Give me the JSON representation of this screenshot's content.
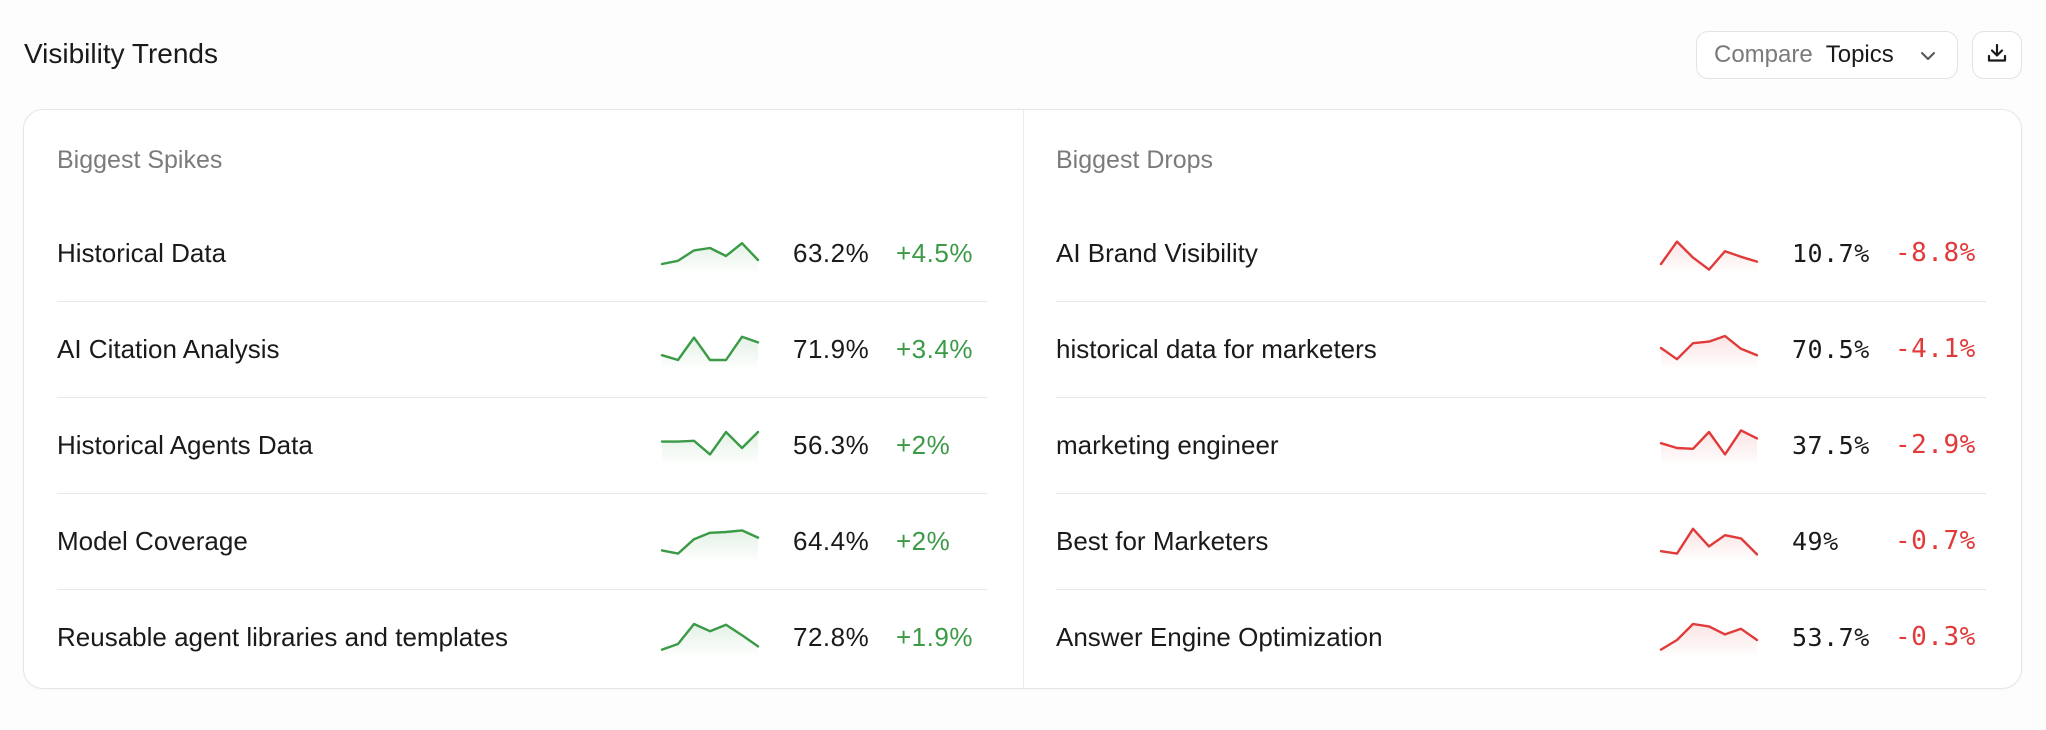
{
  "header": {
    "title": "Visibility Trends",
    "compare_label": "Compare",
    "compare_value": "Topics",
    "compare_icon": "chevron-down-icon",
    "download_icon": "download-icon"
  },
  "colors": {
    "positive": "#3a9a46",
    "negative": "#e03a3a"
  },
  "spikes": {
    "title": "Biggest Spikes",
    "rows": [
      {
        "name": "Historical Data",
        "value": "63.2%",
        "change": "+4.5%",
        "trend": [
          10,
          14,
          27,
          30,
          20,
          36,
          15
        ]
      },
      {
        "name": "AI Citation Analysis",
        "value": "71.9%",
        "change": "+3.4%",
        "trend": [
          16,
          10,
          38,
          10,
          10,
          39,
          32
        ]
      },
      {
        "name": "Historical Agents Data",
        "value": "56.3%",
        "change": "+2%",
        "trend": [
          28,
          28,
          29,
          12,
          40,
          20,
          40
        ]
      },
      {
        "name": "Model Coverage",
        "value": "64.4%",
        "change": "+2%",
        "trend": [
          12,
          8,
          26,
          34,
          35,
          37,
          28
        ]
      },
      {
        "name": "Reusable agent libraries and templates",
        "value": "72.8%",
        "change": "+1.9%",
        "trend": [
          8,
          15,
          40,
          31,
          39,
          26,
          12
        ]
      }
    ]
  },
  "drops": {
    "title": "Biggest Drops",
    "rows": [
      {
        "name": "AI Brand Visibility",
        "value": "10.7%",
        "change": "-8.8%",
        "trend": [
          10,
          38,
          18,
          3,
          26,
          19,
          13
        ]
      },
      {
        "name": "historical data for marketers",
        "value": "70.5%",
        "change": "-4.1%",
        "trend": [
          25,
          11,
          31,
          33,
          40,
          24,
          16
        ]
      },
      {
        "name": "marketing engineer",
        "value": "37.5%",
        "change": "-2.9%",
        "trend": [
          26,
          20,
          19,
          40,
          12,
          42,
          32
        ]
      },
      {
        "name": "Best for Marketers",
        "value": "49%",
        "change": "-0.7%",
        "trend": [
          11,
          8,
          39,
          17,
          31,
          27,
          7
        ]
      },
      {
        "name": "Answer Engine Optimization",
        "value": "53.7%",
        "change": "-0.3%",
        "trend": [
          8,
          20,
          40,
          37,
          27,
          34,
          20
        ]
      }
    ]
  }
}
